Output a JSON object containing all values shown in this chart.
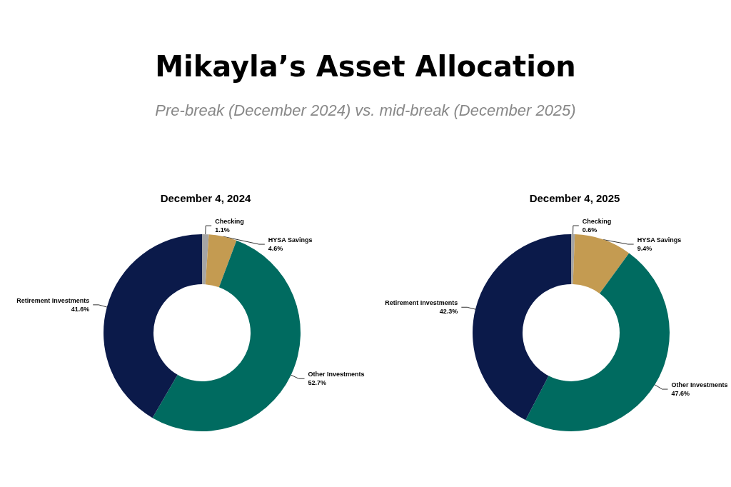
{
  "chart_data": [
    {
      "type": "other",
      "title": "Mikayla’s Asset Allocation",
      "subtitle": "Pre-break (December 2024) vs. mid-break (December 2025)"
    },
    {
      "type": "donut",
      "title": "December 4, 2024",
      "categories": [
        "Checking",
        "HYSA Savings",
        "Other Investments",
        "Retirement Investments"
      ],
      "values": [
        1.1,
        4.6,
        52.7,
        41.6
      ],
      "value_labels": [
        "1.1%",
        "4.6%",
        "52.7%",
        "41.6%"
      ],
      "colors": [
        "#a5a5a5",
        "#c49b51",
        "#006b60",
        "#0b1a4a"
      ],
      "legend": false
    },
    {
      "type": "donut",
      "title": "December 4, 2025",
      "categories": [
        "Checking",
        "HYSA Savings",
        "Other Investments",
        "Retirement Investments"
      ],
      "values": [
        0.6,
        9.4,
        47.6,
        42.3
      ],
      "value_labels": [
        "0.6%",
        "9.4%",
        "47.6%",
        "42.3%"
      ],
      "colors": [
        "#a5a5a5",
        "#c49b51",
        "#006b60",
        "#0b1a4a"
      ],
      "legend": false
    }
  ]
}
